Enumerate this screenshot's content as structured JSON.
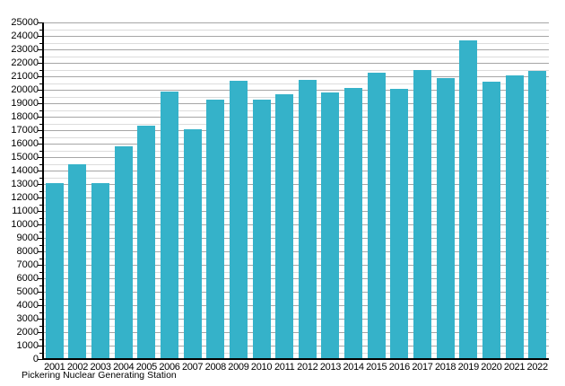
{
  "chart_data": {
    "type": "bar",
    "title": "",
    "caption": "Pickering Nuclear Generating Station",
    "categories": [
      "2001",
      "2002",
      "2003",
      "2004",
      "2005",
      "2006",
      "2007",
      "2008",
      "2009",
      "2010",
      "2011",
      "2012",
      "2013",
      "2014",
      "2015",
      "2016",
      "2017",
      "2018",
      "2019",
      "2020",
      "2021",
      "2022"
    ],
    "values": [
      13100,
      14450,
      13100,
      15800,
      17350,
      19900,
      17050,
      19300,
      20700,
      19300,
      19650,
      20750,
      19800,
      20150,
      21250,
      20050,
      21500,
      20900,
      23650,
      20600,
      21100,
      21400
    ],
    "xlabel": "",
    "ylabel": "",
    "ylim": [
      0,
      25000
    ],
    "y_major_step": 1000,
    "y_minor_step": 500,
    "grid": true,
    "legend": false,
    "colors": {
      "bar": "#35b2c9",
      "major_grid": "#a6a6a6",
      "minor_grid": "#dcdcdc",
      "axis": "#000000",
      "text": "#000000",
      "background": "#ffffff"
    }
  }
}
